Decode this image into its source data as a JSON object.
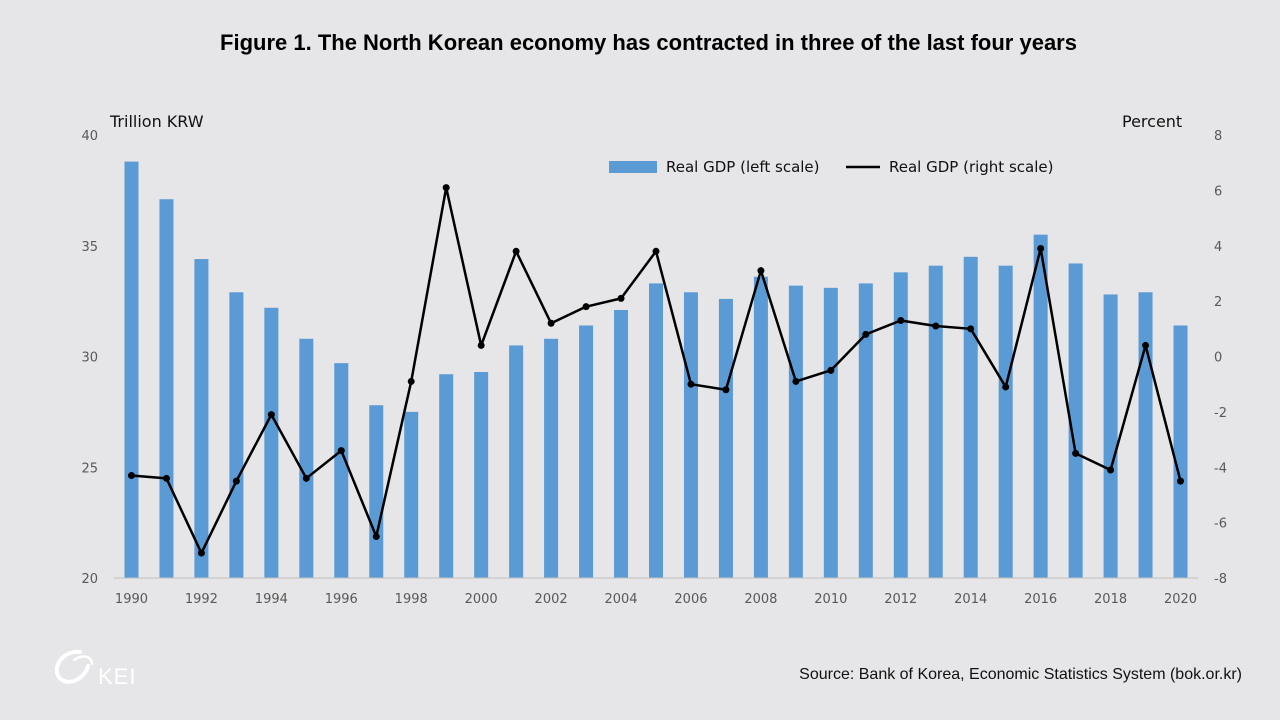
{
  "title": "Figure 1. The North Korean economy has contracted in three of the last four years",
  "left_unit": "Trillion KRW",
  "right_unit": "Percent",
  "source": "Source: Bank of Korea, Economic Statistics System (bok.or.kr)",
  "logo_text": "KEI",
  "colors": {
    "bar": "#5b9bd5",
    "line": "#000000",
    "background": "#e6e5e7"
  },
  "chart_data": {
    "type": "bar",
    "x": [
      1990,
      1991,
      1992,
      1993,
      1994,
      1995,
      1996,
      1997,
      1998,
      1999,
      2000,
      2001,
      2002,
      2003,
      2004,
      2005,
      2006,
      2007,
      2008,
      2009,
      2010,
      2011,
      2012,
      2013,
      2014,
      2015,
      2016,
      2017,
      2018,
      2019,
      2020
    ],
    "xticks": [
      "1990",
      "1992",
      "1994",
      "1996",
      "1998",
      "2000",
      "2002",
      "2004",
      "2006",
      "2008",
      "2010",
      "2012",
      "2014",
      "2016",
      "2018",
      "2020"
    ],
    "series": [
      {
        "name": "Real GDP (left scale)",
        "type": "bar",
        "axis": "left",
        "values": [
          38.8,
          37.1,
          34.4,
          32.9,
          32.2,
          30.8,
          29.7,
          27.8,
          27.5,
          29.2,
          29.3,
          30.5,
          30.8,
          31.4,
          32.1,
          33.3,
          32.9,
          32.6,
          33.6,
          33.2,
          33.1,
          33.3,
          33.8,
          34.1,
          34.5,
          34.1,
          35.5,
          34.2,
          32.8,
          32.9,
          31.4
        ]
      },
      {
        "name": "Real GDP (right scale)",
        "type": "line",
        "axis": "right",
        "values": [
          -4.3,
          -4.4,
          -7.1,
          -4.5,
          -2.1,
          -4.4,
          -3.4,
          -6.5,
          -0.9,
          6.1,
          0.4,
          3.8,
          1.2,
          1.8,
          2.1,
          3.8,
          -1.0,
          -1.2,
          3.1,
          -0.9,
          -0.5,
          0.8,
          1.3,
          1.1,
          1.0,
          -1.1,
          3.9,
          -3.5,
          -4.1,
          0.4,
          -4.5
        ]
      }
    ],
    "left_axis": {
      "min": 20,
      "max": 40,
      "ticks": [
        "20",
        "25",
        "30",
        "35",
        "40"
      ]
    },
    "right_axis": {
      "min": -8,
      "max": 8,
      "ticks": [
        "-8",
        "-6",
        "-4",
        "-2",
        "0",
        "2",
        "4",
        "6",
        "8"
      ]
    },
    "grid": false,
    "legend": "top-right"
  }
}
